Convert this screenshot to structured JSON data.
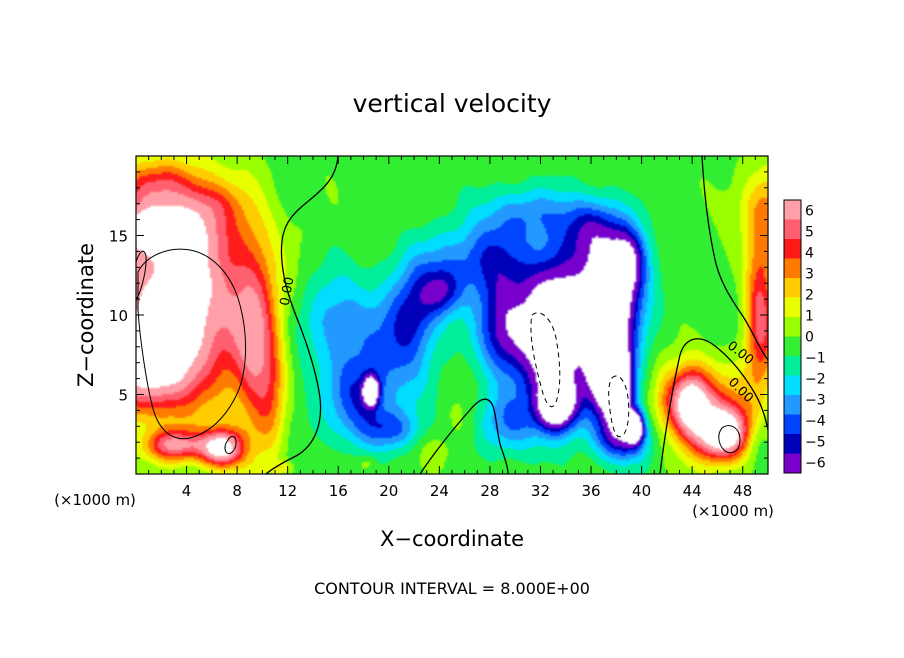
{
  "chart_data": {
    "type": "heatmap",
    "title": "vertical velocity",
    "xlabel": "X−coordinate",
    "ylabel": "Z−coordinate",
    "x_unit_left": "(×1000 m)",
    "x_unit_right": "(×1000 m)",
    "xlim": [
      0,
      50
    ],
    "ylim": [
      0,
      20
    ],
    "xticks": [
      4,
      8,
      12,
      16,
      20,
      24,
      28,
      32,
      36,
      40,
      44,
      48
    ],
    "yticks": [
      5,
      10,
      15
    ],
    "footer": "CONTOUR INTERVAL = 8.000E+00",
    "contour_labels": [
      "0.00",
      "0.00",
      "0.00"
    ],
    "colorbar": {
      "ticks": [
        "6",
        "5",
        "4",
        "3",
        "2",
        "1",
        "0",
        "−1",
        "−2",
        "−3",
        "−4",
        "−5",
        "−6"
      ],
      "colors": [
        "#ff9fa8",
        "#ff6070",
        "#ff1a1a",
        "#ff7a00",
        "#ffcc00",
        "#e8ff00",
        "#99ff00",
        "#33ee33",
        "#00ee99",
        "#00ddff",
        "#2299ff",
        "#0044ff",
        "#0000bb",
        "#7700cc"
      ]
    },
    "blobs": [
      {
        "x": 0.7,
        "y": 6.8,
        "rx": 3.8,
        "ry": 3.0,
        "v": 5
      },
      {
        "x": 3.4,
        "y": 11.2,
        "rx": 5.5,
        "ry": 6.2,
        "v": 8
      },
      {
        "x": 1.0,
        "y": 15.5,
        "rx": 5.0,
        "ry": 1.6,
        "v": 4.5
      },
      {
        "x": 6.8,
        "y": 1.6,
        "rx": 1.6,
        "ry": 1.2,
        "v": 7
      },
      {
        "x": 3.2,
        "y": 1.8,
        "rx": 2.5,
        "ry": 1.0,
        "v": 5
      },
      {
        "x": 9.4,
        "y": 8.0,
        "rx": 1.7,
        "ry": 6.3,
        "v": 4
      },
      {
        "x": 10.8,
        "y": 5.0,
        "rx": 1.2,
        "ry": 4.2,
        "v": 2
      },
      {
        "x": 1.5,
        "y": 18.2,
        "rx": 4.2,
        "ry": 1.5,
        "v": 2.5
      },
      {
        "x": 6.0,
        "y": 17.0,
        "rx": 2.2,
        "ry": 1.2,
        "v": 1.5
      },
      {
        "x": 16.0,
        "y": 9.5,
        "rx": 3.0,
        "ry": 3.2,
        "v": -2.8
      },
      {
        "x": 17.6,
        "y": 4.8,
        "rx": 2.2,
        "ry": 2.7,
        "v": -3.5
      },
      {
        "x": 18.6,
        "y": 5.2,
        "rx": 0.6,
        "ry": 0.9,
        "v": -7
      },
      {
        "x": 21.0,
        "y": 8.2,
        "rx": 2.5,
        "ry": 3.8,
        "v": -3.2
      },
      {
        "x": 22.3,
        "y": 10.6,
        "rx": 1.8,
        "ry": 2.6,
        "v": -2.5
      },
      {
        "x": 20.0,
        "y": 2.8,
        "rx": 2.2,
        "ry": 1.3,
        "v": -3
      },
      {
        "x": 24.5,
        "y": 13.3,
        "rx": 3.2,
        "ry": 2.2,
        "v": -1.8
      },
      {
        "x": 24.3,
        "y": 11.4,
        "rx": 1.5,
        "ry": 1.5,
        "v": -3.2
      },
      {
        "x": 28.2,
        "y": 13.6,
        "rx": 2.8,
        "ry": 2.8,
        "v": -3.2
      },
      {
        "x": 29.2,
        "y": 9.0,
        "rx": 2.2,
        "ry": 3.0,
        "v": -5
      },
      {
        "x": 33.0,
        "y": 8.5,
        "rx": 2.4,
        "ry": 4.2,
        "v": -8.5
      },
      {
        "x": 33.4,
        "y": 4.3,
        "rx": 1.6,
        "ry": 1.6,
        "v": -7
      },
      {
        "x": 36.9,
        "y": 7.0,
        "rx": 1.5,
        "ry": 3.1,
        "v": -7.5
      },
      {
        "x": 38.2,
        "y": 5.5,
        "rx": 1.3,
        "ry": 2.7,
        "v": -8
      },
      {
        "x": 37.6,
        "y": 11.0,
        "rx": 2.3,
        "ry": 3.5,
        "v": -6.5
      },
      {
        "x": 36.0,
        "y": 15.5,
        "rx": 2.6,
        "ry": 2.0,
        "v": -3.3
      },
      {
        "x": 31.0,
        "y": 16.5,
        "rx": 3.2,
        "ry": 1.7,
        "v": -2.2
      },
      {
        "x": 35.0,
        "y": 12.0,
        "rx": 4.5,
        "ry": 3.5,
        "v": -2.5
      },
      {
        "x": 39.5,
        "y": 3.0,
        "rx": 0.7,
        "ry": 1.0,
        "v": -7
      },
      {
        "x": 39.0,
        "y": 13.5,
        "rx": 1.4,
        "ry": 2.0,
        "v": -4
      },
      {
        "x": 38.5,
        "y": 2.2,
        "rx": 2.2,
        "ry": 1.5,
        "v": -4
      },
      {
        "x": 29.5,
        "y": 3.2,
        "rx": 2.6,
        "ry": 2.0,
        "v": -2.8
      },
      {
        "x": 25.8,
        "y": 3.5,
        "rx": 1.4,
        "ry": 1.5,
        "v": 0.5
      },
      {
        "x": 23.6,
        "y": 1.4,
        "rx": 1.4,
        "ry": 1.0,
        "v": 0.8
      },
      {
        "x": 18.3,
        "y": 0.7,
        "rx": 0.8,
        "ry": 0.5,
        "v": 1.0
      },
      {
        "x": 11.6,
        "y": 0.4,
        "rx": 0.9,
        "ry": 0.4,
        "v": 1.6
      },
      {
        "x": 43.8,
        "y": 4.5,
        "rx": 1.5,
        "ry": 2.0,
        "v": 6.5
      },
      {
        "x": 46.5,
        "y": 2.5,
        "rx": 2.0,
        "ry": 1.6,
        "v": 7
      },
      {
        "x": 45.5,
        "y": 4.0,
        "rx": 3.4,
        "ry": 3.0,
        "v": 3.5
      },
      {
        "x": 41.8,
        "y": 4.8,
        "rx": 0.9,
        "ry": 2.3,
        "v": 1.2
      },
      {
        "x": 49.4,
        "y": 10.0,
        "rx": 1.2,
        "ry": 4.8,
        "v": 5
      },
      {
        "x": 50.0,
        "y": 16.5,
        "rx": 2.0,
        "ry": 3.0,
        "v": 2.5
      },
      {
        "x": 45.6,
        "y": 11.0,
        "rx": 1.8,
        "ry": 2.5,
        "v": -0.5
      },
      {
        "x": 49.2,
        "y": 2.2,
        "rx": 1.0,
        "ry": 1.5,
        "v": -1.5
      },
      {
        "x": 0.8,
        "y": 2.8,
        "rx": 1.3,
        "ry": 1.5,
        "v": -0.5
      },
      {
        "x": 13.8,
        "y": 4.0,
        "rx": 2.5,
        "ry": 3.0,
        "v": -0.6
      },
      {
        "x": 47.0,
        "y": 17.0,
        "rx": 2.0,
        "ry": 2.0,
        "v": 0.6
      }
    ]
  }
}
